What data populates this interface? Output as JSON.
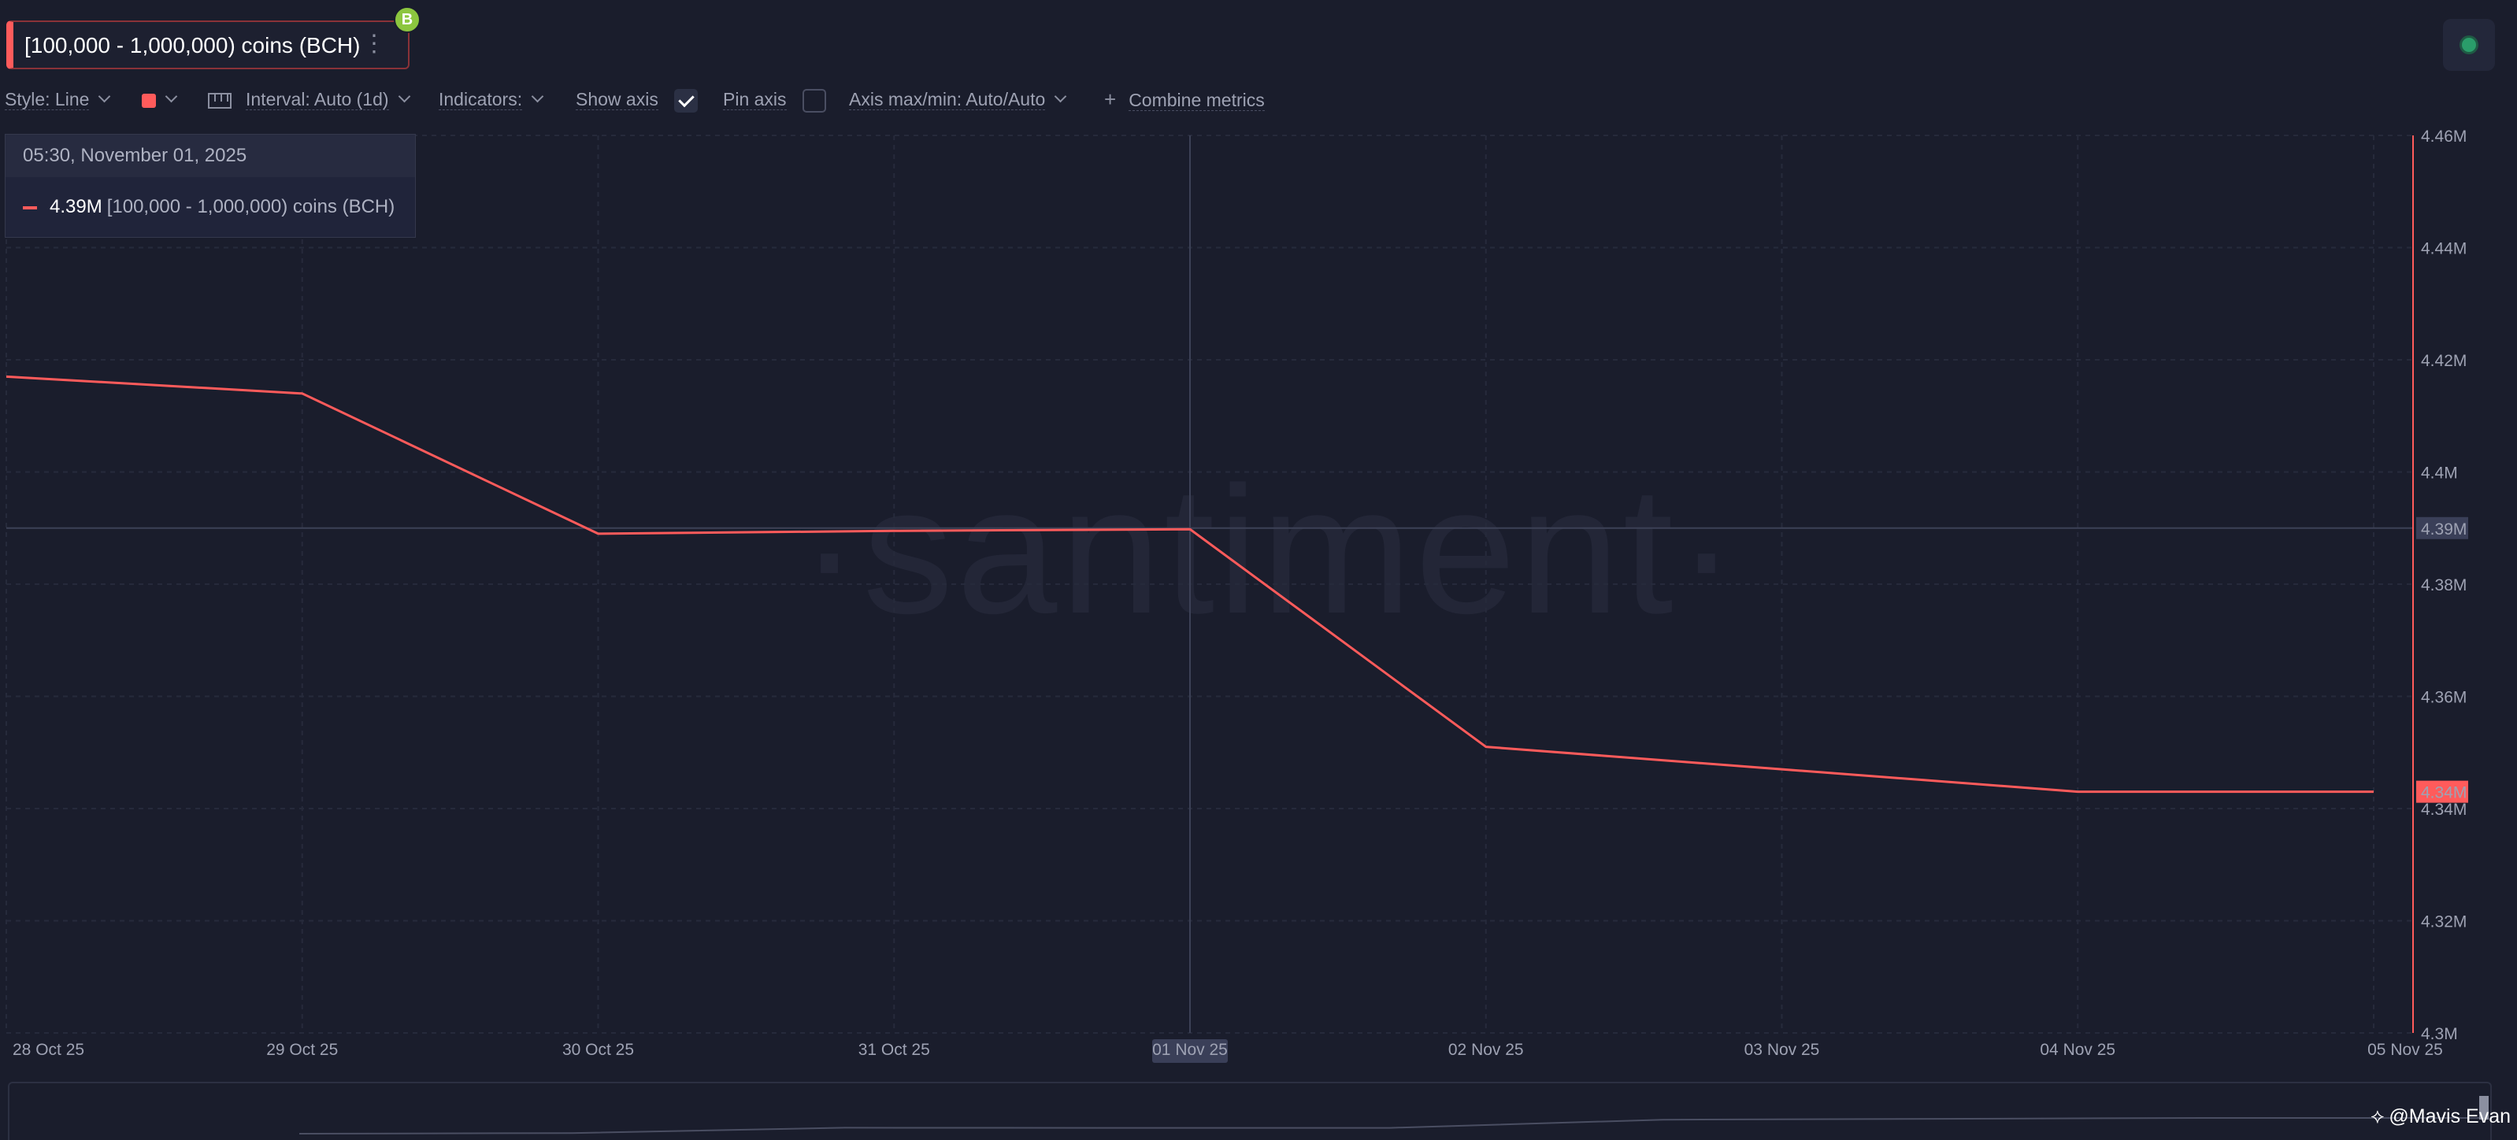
{
  "metric": {
    "label": "[100,000 - 1,000,000) coins (BCH)",
    "badge": "B",
    "more_icon": "kebab-menu-icon"
  },
  "toolbar": {
    "style": "Style: Line",
    "interval": "Interval: Auto (1d)",
    "indicators": "Indicators:",
    "show_axis": "Show axis",
    "show_axis_checked": true,
    "pin_axis": "Pin axis",
    "pin_axis_checked": false,
    "axis_maxmin": "Axis max/min: Auto/Auto",
    "combine": "Combine metrics"
  },
  "tooltip": {
    "date": "05:30, November 01, 2025",
    "value": "4.39M",
    "series": "[100,000  - 1,000,000) coins (BCH)"
  },
  "watermark": "·santiment·",
  "signature": "@Mavis Evan",
  "colors": {
    "line": "#ff5b5b",
    "background": "#1a1d2c"
  },
  "chart_data": {
    "type": "line",
    "x": [
      "28 Oct 25",
      "29 Oct 25",
      "30 Oct 25",
      "31 Oct 25",
      "01 Nov 25",
      "02 Nov 25",
      "03 Nov 25",
      "04 Nov 25",
      "05 Nov 25"
    ],
    "series": [
      {
        "name": "[100,000 - 1,000,000) coins (BCH)",
        "values": [
          4.417,
          4.414,
          4.389,
          4.3895,
          4.3898,
          4.351,
          4.347,
          4.343,
          4.343
        ]
      }
    ],
    "x_labels": [
      "28 Oct 25",
      "29 Oct 25",
      "30 Oct 25",
      "31 Oct 25",
      "01 Nov 25",
      "02 Nov 25",
      "03 Nov 25",
      "04 Nov 25",
      "05 Nov 25"
    ],
    "x_highlight": "01 Nov 25",
    "y_ticks": [
      {
        "value": 4.46,
        "label": "4.46M"
      },
      {
        "value": 4.44,
        "label": "4.44M"
      },
      {
        "value": 4.42,
        "label": "4.42M"
      },
      {
        "value": 4.4,
        "label": "4.4M"
      },
      {
        "value": 4.38,
        "label": "4.38M"
      },
      {
        "value": 4.36,
        "label": "4.36M"
      },
      {
        "value": 4.34,
        "label": "4.34M"
      },
      {
        "value": 4.32,
        "label": "4.32M"
      },
      {
        "value": 4.3,
        "label": "4.3M"
      }
    ],
    "ylim": [
      4.3,
      4.46
    ],
    "y_axis_side": "right",
    "crosshair": {
      "x": "01 Nov 25",
      "value": 4.39,
      "label": "4.39M"
    },
    "last_value_label": "4.34M",
    "last_value": 4.343,
    "grid": true
  }
}
